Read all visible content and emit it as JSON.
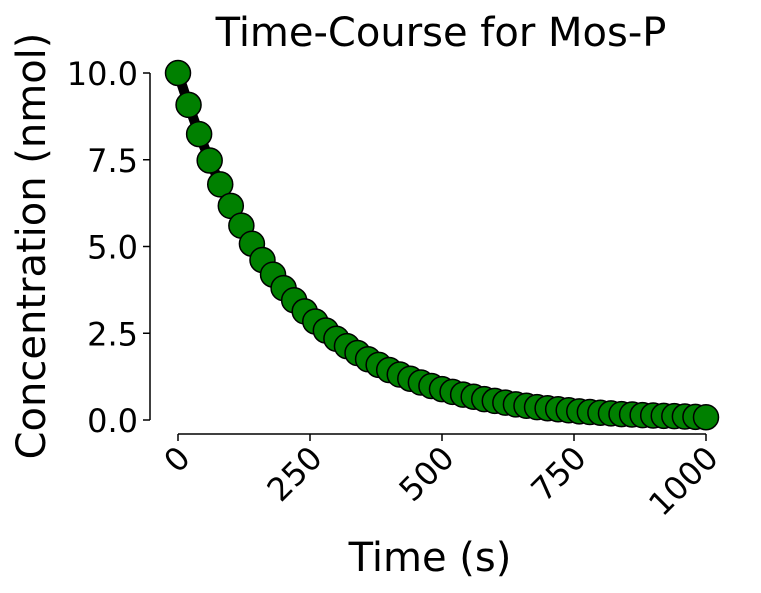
{
  "chart_data": {
    "type": "line",
    "title": "Time-Course for Mos-P",
    "xlabel": "Time (s)",
    "ylabel": "Concentration (nmol)",
    "xlim": [
      -5,
      1005
    ],
    "ylim": [
      -0.05,
      10.0
    ],
    "x_ticks": [
      0,
      250,
      500,
      750,
      1000
    ],
    "x_tick_labels": [
      "0",
      "250",
      "500",
      "750",
      "1000"
    ],
    "y_ticks": [
      0.0,
      2.5,
      5.0,
      7.5,
      10.0
    ],
    "y_tick_labels": [
      "0.0",
      "2.5",
      "5.0",
      "7.5",
      "10.0"
    ],
    "grid": false,
    "legend": "none",
    "line_color": "#000000",
    "marker_color": "#008000",
    "marker_edge_color": "#000000",
    "series": [
      {
        "x": [
          0,
          20,
          40,
          60,
          80,
          100,
          120,
          140,
          160,
          180,
          200,
          220,
          240,
          260,
          280,
          300,
          320,
          340,
          360,
          380,
          400,
          420,
          440,
          460,
          480,
          500,
          520,
          540,
          560,
          580,
          600,
          620,
          640,
          660,
          680,
          700,
          720,
          740,
          760,
          780,
          800,
          820,
          840,
          860,
          880,
          900,
          920,
          940,
          960,
          980,
          1000
        ],
        "values": [
          10.0,
          9.08,
          8.24,
          7.48,
          6.79,
          6.17,
          5.6,
          5.08,
          4.61,
          4.19,
          3.8,
          3.45,
          3.13,
          2.84,
          2.58,
          2.34,
          2.13,
          1.93,
          1.75,
          1.59,
          1.44,
          1.31,
          1.19,
          1.08,
          0.98,
          0.89,
          0.81,
          0.73,
          0.67,
          0.6,
          0.55,
          0.5,
          0.45,
          0.41,
          0.37,
          0.34,
          0.31,
          0.28,
          0.25,
          0.23,
          0.21,
          0.19,
          0.17,
          0.16,
          0.14,
          0.13,
          0.12,
          0.11,
          0.1,
          0.09,
          0.08
        ]
      }
    ]
  }
}
